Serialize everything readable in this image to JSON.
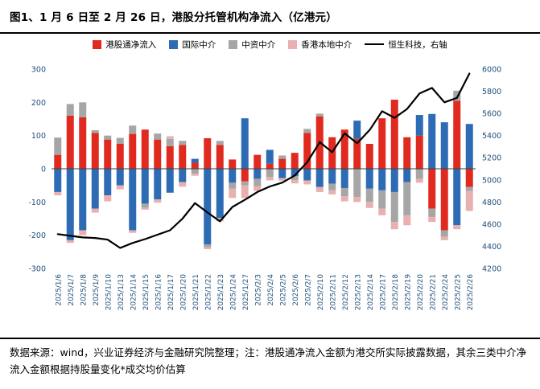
{
  "title": "图1、1 月 6 日至 2 月 26 日，港股分托管机构净流入（亿港元）",
  "footnote": "数据来源：wind，兴业证券经济与金融研究院整理；注：港股通净流入金额为港交所实际披露数据，其余三类中介净流入金额根据持股量变化*成交均价估算",
  "colors": {
    "red": "#e02a20",
    "blue": "#2d6cb5",
    "gray": "#a6a6a6",
    "pink": "#e8b0ae",
    "line": "#000000",
    "axis_text": "#1f4e79",
    "zero_line": "#404040"
  },
  "chart_data": {
    "type": "bar",
    "subtype": "stacked-bar-with-line",
    "stacked": true,
    "grid": false,
    "legend_position": "top",
    "categories": [
      "2025/1/6",
      "2025/1/7",
      "2025/1/8",
      "2025/1/9",
      "2025/1/10",
      "2025/1/13",
      "2025/1/14",
      "2025/1/15",
      "2025/1/16",
      "2025/1/17",
      "2025/1/20",
      "2025/1/21",
      "2025/1/22",
      "2025/1/23",
      "2025/1/24",
      "2025/1/27",
      "2025/2/3",
      "2025/2/4",
      "2025/2/5",
      "2025/2/6",
      "2025/2/7",
      "2025/2/10",
      "2025/2/11",
      "2025/2/12",
      "2025/2/13",
      "2025/2/14",
      "2025/2/17",
      "2025/2/18",
      "2025/2/19",
      "2025/2/20",
      "2025/2/21",
      "2025/2/24",
      "2025/2/25",
      "2025/2/26"
    ],
    "left_axis": {
      "label": "亿港元",
      "min": -300,
      "max": 300,
      "ticks": [
        300,
        200,
        100,
        0,
        -100,
        -200,
        -300
      ]
    },
    "right_axis": {
      "label": "恒生科技",
      "min": 4200,
      "max": 6000,
      "ticks": [
        6000,
        5800,
        5600,
        5400,
        5200,
        5000,
        4800,
        4600,
        4400,
        4200
      ]
    },
    "series": [
      {
        "name": "港股通净流入",
        "type": "bar",
        "axis": "left",
        "color_key": "red",
        "values": [
          42,
          160,
          155,
          108,
          88,
          75,
          105,
          118,
          88,
          68,
          72,
          18,
          92,
          72,
          28,
          -38,
          42,
          15,
          30,
          48,
          108,
          158,
          95,
          118,
          90,
          75,
          152,
          208,
          95,
          100,
          -120,
          -185,
          205,
          -55
        ]
      },
      {
        "name": "国际中介",
        "type": "bar",
        "axis": "left",
        "color_key": "blue",
        "values": [
          -70,
          -215,
          -185,
          -120,
          -80,
          -50,
          -185,
          -105,
          -92,
          -72,
          -40,
          12,
          -228,
          -148,
          -42,
          152,
          -30,
          42,
          -28,
          -22,
          -35,
          -55,
          -45,
          -58,
          55,
          -60,
          -65,
          -70,
          -40,
          62,
          165,
          140,
          -170,
          135
        ]
      },
      {
        "name": "中资中介",
        "type": "bar",
        "axis": "left",
        "color_key": "gray",
        "values": [
          52,
          35,
          45,
          8,
          12,
          18,
          25,
          -12,
          18,
          22,
          12,
          -15,
          -8,
          12,
          -18,
          -12,
          -22,
          -25,
          10,
          -12,
          12,
          8,
          -20,
          -25,
          -85,
          -40,
          -55,
          -90,
          -100,
          -30,
          -25,
          -20,
          30,
          -12
        ]
      },
      {
        "name": "香港本地中介",
        "type": "bar",
        "axis": "left",
        "color_key": "pink",
        "values": [
          -10,
          -8,
          -15,
          -12,
          -18,
          -12,
          -8,
          -6,
          -10,
          8,
          -14,
          -6,
          -6,
          -10,
          -28,
          -38,
          -15,
          -10,
          -8,
          -10,
          -12,
          -15,
          -12,
          -15,
          -15,
          -18,
          -20,
          -22,
          -30,
          -12,
          -15,
          -10,
          -12,
          -60
        ]
      },
      {
        "name": "恒生科技，右轴",
        "type": "line",
        "axis": "right",
        "color_key": "line",
        "values": [
          4510,
          4495,
          4480,
          4475,
          4460,
          4385,
          4430,
          4465,
          4505,
          4545,
          4650,
          4790,
          4705,
          4625,
          4755,
          4820,
          4890,
          4940,
          4975,
          5040,
          5160,
          5340,
          5250,
          5420,
          5330,
          5450,
          5620,
          5560,
          5640,
          5780,
          5830,
          5700,
          5740,
          5960
        ]
      }
    ]
  }
}
